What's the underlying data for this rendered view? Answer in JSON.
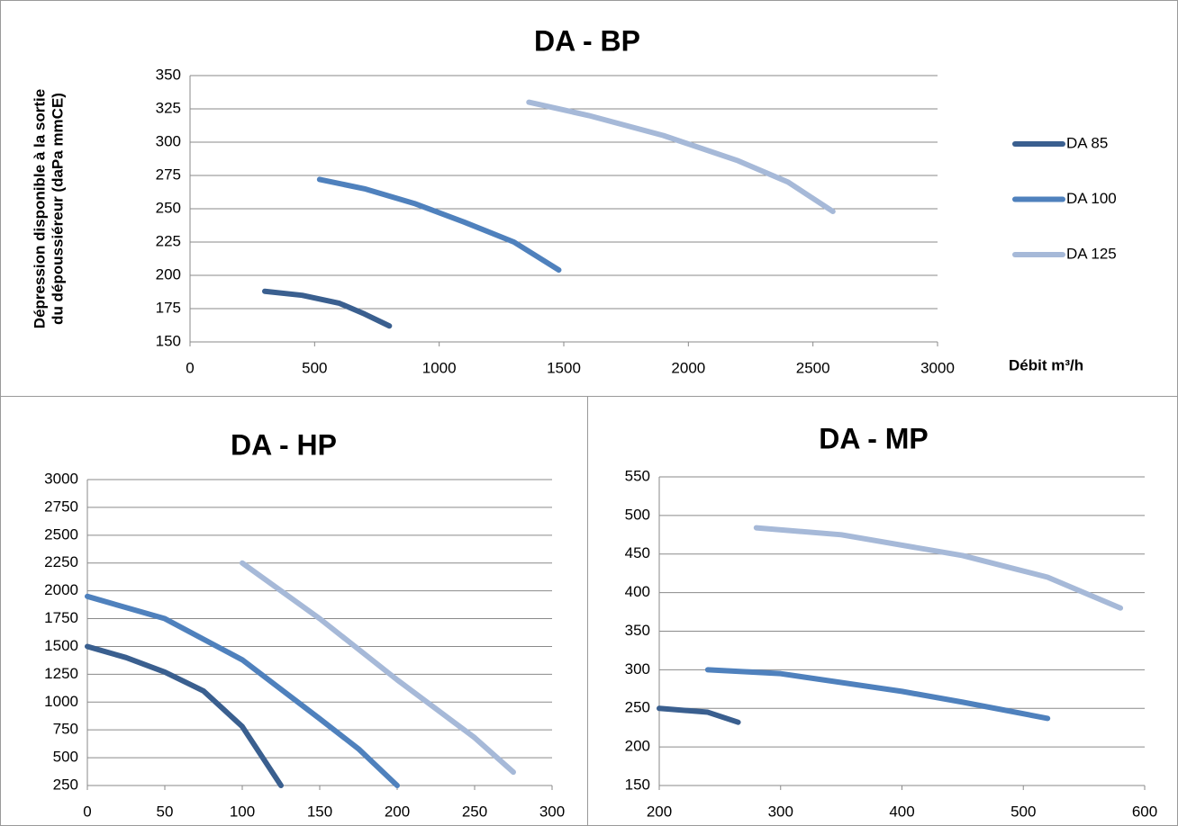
{
  "chart_data": [
    {
      "type": "line",
      "title": "DA - BP",
      "ylabel": [
        "Dépression disponible à la sortie",
        "du dépoussiéreur (daPa mmCE)"
      ],
      "xlabel": "Débit m³/h",
      "xlim": [
        0,
        3000
      ],
      "xticks": [
        0,
        500,
        1000,
        1500,
        2000,
        2500,
        3000
      ],
      "ylim": [
        150,
        350
      ],
      "yticks": [
        150,
        175,
        200,
        225,
        250,
        275,
        300,
        325,
        350
      ],
      "grid": true,
      "legend": "right",
      "series": [
        {
          "name": "DA 85",
          "color": "#3a5f8f",
          "x": [
            300,
            450,
            600,
            700,
            800
          ],
          "values": [
            188,
            185,
            179,
            171,
            162
          ]
        },
        {
          "name": "DA 100",
          "color": "#4f81bd",
          "x": [
            520,
            700,
            900,
            1100,
            1300,
            1480
          ],
          "values": [
            272,
            265,
            254,
            240,
            225,
            204
          ]
        },
        {
          "name": "DA 125",
          "color": "#a6b9d8",
          "x": [
            1360,
            1600,
            1900,
            2200,
            2400,
            2580
          ],
          "values": [
            330,
            320,
            305,
            286,
            270,
            248
          ]
        }
      ]
    },
    {
      "type": "line",
      "title": "DA - HP",
      "xlim": [
        0,
        300
      ],
      "xticks": [
        0,
        50,
        100,
        150,
        200,
        250,
        300
      ],
      "ylim": [
        250,
        3000
      ],
      "yticks": [
        250,
        500,
        750,
        1000,
        1250,
        1500,
        1750,
        2000,
        2250,
        2500,
        2750,
        3000
      ],
      "grid": true,
      "series": [
        {
          "color": "#3a5f8f",
          "x": [
            0,
            25,
            50,
            75,
            100,
            125
          ],
          "values": [
            1500,
            1400,
            1270,
            1100,
            780,
            250
          ]
        },
        {
          "color": "#4f81bd",
          "x": [
            0,
            50,
            100,
            150,
            175,
            200
          ],
          "values": [
            1950,
            1750,
            1380,
            850,
            580,
            250
          ]
        },
        {
          "color": "#a6b9d8",
          "x": [
            100,
            150,
            200,
            250,
            275
          ],
          "values": [
            2250,
            1750,
            1200,
            680,
            370
          ]
        }
      ]
    },
    {
      "type": "line",
      "title": "DA - MP",
      "xlim": [
        200,
        600
      ],
      "xticks": [
        200,
        300,
        400,
        500,
        600
      ],
      "ylim": [
        150,
        550
      ],
      "yticks": [
        150,
        200,
        250,
        300,
        350,
        400,
        450,
        500,
        550
      ],
      "grid": true,
      "series": [
        {
          "color": "#3a5f8f",
          "x": [
            200,
            240,
            265
          ],
          "values": [
            250,
            245,
            232
          ]
        },
        {
          "color": "#4f81bd",
          "x": [
            240,
            300,
            400,
            450,
            520
          ],
          "values": [
            300,
            295,
            272,
            258,
            237
          ]
        },
        {
          "color": "#a6b9d8",
          "x": [
            280,
            350,
            450,
            520,
            580
          ],
          "values": [
            484,
            475,
            448,
            420,
            380
          ]
        }
      ]
    }
  ]
}
